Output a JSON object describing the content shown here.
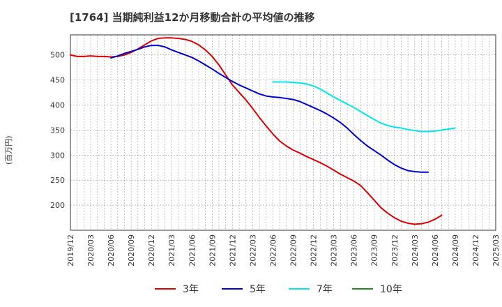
{
  "chart_data": {
    "type": "line",
    "title": "[1764]  当期純利益12か月移動合計の平均値の推移",
    "ylabel": "(百万円)",
    "xlabel": "",
    "ylim": [
      150,
      540
    ],
    "yticks": [
      200,
      250,
      300,
      350,
      400,
      450,
      500
    ],
    "grid": true,
    "legend_position": "bottom",
    "x_ticks": [
      "2019/12",
      "2020/03",
      "2020/06",
      "2020/09",
      "2020/12",
      "2021/03",
      "2021/06",
      "2021/09",
      "2021/12",
      "2022/03",
      "2022/06",
      "2022/09",
      "2022/12",
      "2023/03",
      "2023/06",
      "2023/09",
      "2023/12",
      "2024/03",
      "2024/06",
      "2024/09",
      "2024/12",
      "2025/03"
    ],
    "series": [
      {
        "name": "3年",
        "color": "#dd0000",
        "points": [
          [
            "2019/12",
            500
          ],
          [
            "2020/01",
            497
          ],
          [
            "2020/02",
            497
          ],
          [
            "2020/03",
            498
          ],
          [
            "2020/04",
            497
          ],
          [
            "2020/05",
            497
          ],
          [
            "2020/06",
            496
          ],
          [
            "2020/07",
            497
          ],
          [
            "2020/08",
            500
          ],
          [
            "2020/09",
            505
          ],
          [
            "2020/10",
            512
          ],
          [
            "2020/11",
            520
          ],
          [
            "2020/12",
            528
          ],
          [
            "2021/01",
            533
          ],
          [
            "2021/02",
            534
          ],
          [
            "2021/03",
            534
          ],
          [
            "2021/04",
            533
          ],
          [
            "2021/05",
            531
          ],
          [
            "2021/06",
            527
          ],
          [
            "2021/07",
            520
          ],
          [
            "2021/08",
            510
          ],
          [
            "2021/09",
            497
          ],
          [
            "2021/10",
            480
          ],
          [
            "2021/11",
            460
          ],
          [
            "2021/12",
            440
          ],
          [
            "2022/01",
            425
          ],
          [
            "2022/02",
            410
          ],
          [
            "2022/03",
            393
          ],
          [
            "2022/04",
            375
          ],
          [
            "2022/05",
            358
          ],
          [
            "2022/06",
            342
          ],
          [
            "2022/07",
            328
          ],
          [
            "2022/08",
            318
          ],
          [
            "2022/09",
            310
          ],
          [
            "2022/10",
            304
          ],
          [
            "2022/11",
            297
          ],
          [
            "2022/12",
            291
          ],
          [
            "2023/01",
            285
          ],
          [
            "2023/02",
            278
          ],
          [
            "2023/03",
            270
          ],
          [
            "2023/04",
            262
          ],
          [
            "2023/05",
            255
          ],
          [
            "2023/06",
            248
          ],
          [
            "2023/07",
            239
          ],
          [
            "2023/08",
            225
          ],
          [
            "2023/09",
            210
          ],
          [
            "2023/10",
            195
          ],
          [
            "2023/11",
            184
          ],
          [
            "2023/12",
            175
          ],
          [
            "2024/01",
            168
          ],
          [
            "2024/02",
            164
          ],
          [
            "2024/03",
            162
          ],
          [
            "2024/04",
            163
          ],
          [
            "2024/05",
            166
          ],
          [
            "2024/06",
            172
          ],
          [
            "2024/07",
            180
          ]
        ]
      },
      {
        "name": "5年",
        "color": "#0000cc",
        "points": [
          [
            "2020/06",
            494
          ],
          [
            "2020/07",
            498
          ],
          [
            "2020/08",
            503
          ],
          [
            "2020/09",
            507
          ],
          [
            "2020/10",
            511
          ],
          [
            "2020/11",
            516
          ],
          [
            "2020/12",
            519
          ],
          [
            "2021/01",
            519
          ],
          [
            "2021/02",
            516
          ],
          [
            "2021/03",
            510
          ],
          [
            "2021/04",
            505
          ],
          [
            "2021/05",
            500
          ],
          [
            "2021/06",
            495
          ],
          [
            "2021/07",
            488
          ],
          [
            "2021/08",
            480
          ],
          [
            "2021/09",
            472
          ],
          [
            "2021/10",
            463
          ],
          [
            "2021/11",
            455
          ],
          [
            "2021/12",
            447
          ],
          [
            "2022/01",
            440
          ],
          [
            "2022/02",
            434
          ],
          [
            "2022/03",
            428
          ],
          [
            "2022/04",
            422
          ],
          [
            "2022/05",
            418
          ],
          [
            "2022/06",
            416
          ],
          [
            "2022/07",
            415
          ],
          [
            "2022/08",
            413
          ],
          [
            "2022/09",
            411
          ],
          [
            "2022/10",
            407
          ],
          [
            "2022/11",
            401
          ],
          [
            "2022/12",
            395
          ],
          [
            "2023/01",
            389
          ],
          [
            "2023/02",
            382
          ],
          [
            "2023/03",
            374
          ],
          [
            "2023/04",
            365
          ],
          [
            "2023/05",
            354
          ],
          [
            "2023/06",
            341
          ],
          [
            "2023/07",
            329
          ],
          [
            "2023/08",
            318
          ],
          [
            "2023/09",
            309
          ],
          [
            "2023/10",
            300
          ],
          [
            "2023/11",
            290
          ],
          [
            "2023/12",
            281
          ],
          [
            "2024/01",
            274
          ],
          [
            "2024/02",
            269
          ],
          [
            "2024/03",
            267
          ],
          [
            "2024/04",
            266
          ],
          [
            "2024/05",
            266
          ]
        ]
      },
      {
        "name": "7年",
        "color": "#00e5ee",
        "points": [
          [
            "2022/06",
            446
          ],
          [
            "2022/07",
            446
          ],
          [
            "2022/08",
            446
          ],
          [
            "2022/09",
            445
          ],
          [
            "2022/10",
            444
          ],
          [
            "2022/11",
            442
          ],
          [
            "2022/12",
            438
          ],
          [
            "2023/01",
            432
          ],
          [
            "2023/02",
            424
          ],
          [
            "2023/03",
            416
          ],
          [
            "2023/04",
            409
          ],
          [
            "2023/05",
            402
          ],
          [
            "2023/06",
            395
          ],
          [
            "2023/07",
            387
          ],
          [
            "2023/08",
            379
          ],
          [
            "2023/09",
            371
          ],
          [
            "2023/10",
            364
          ],
          [
            "2023/11",
            359
          ],
          [
            "2023/12",
            356
          ],
          [
            "2024/01",
            354
          ],
          [
            "2024/02",
            351
          ],
          [
            "2024/03",
            349
          ],
          [
            "2024/04",
            347
          ],
          [
            "2024/05",
            347
          ],
          [
            "2024/06",
            348
          ],
          [
            "2024/07",
            350
          ],
          [
            "2024/08",
            352
          ],
          [
            "2024/09",
            354
          ]
        ]
      },
      {
        "name": "10年",
        "color": "#228b22",
        "points": []
      }
    ]
  }
}
